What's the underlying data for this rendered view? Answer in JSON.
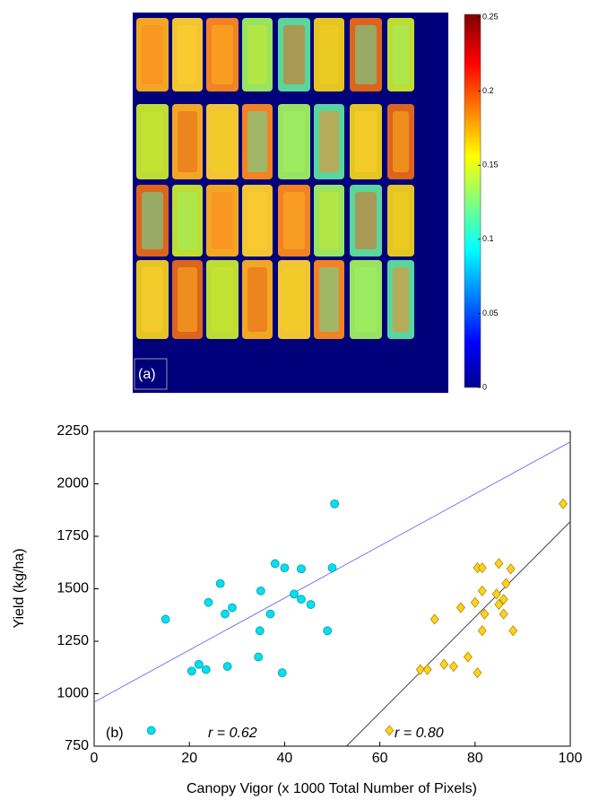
{
  "chart_data": [
    {
      "type": "image",
      "annotation": "(a)",
      "colorbar": {
        "ylim": [
          0,
          0.25
        ],
        "yticks": [
          0,
          0.05,
          0.1,
          0.15,
          0.2,
          0.25
        ]
      }
    },
    {
      "type": "scatter",
      "xlabel": "Canopy Vigor (x 1000 Total Number of Pixels)",
      "ylabel": "Yield (kg/ha)",
      "xlim": [
        0,
        100
      ],
      "xticks": [
        0,
        20,
        40,
        60,
        80,
        100
      ],
      "ylim": [
        750,
        2250
      ],
      "yticks": [
        750,
        1000,
        1250,
        1500,
        1750,
        2000,
        2250
      ],
      "series": [
        {
          "color": "#00e0f0",
          "marker": "circle",
          "x": [
            12,
            15,
            20.5,
            22,
            23.5,
            24,
            26.5,
            27.5,
            28,
            29,
            34.5,
            34.8,
            35,
            37,
            38,
            39.5,
            40,
            42,
            43.5,
            43.5,
            45.5,
            49,
            50,
            50.5
          ],
          "values": [
            825,
            1355,
            1108,
            1140,
            1115,
            1435,
            1525,
            1380,
            1130,
            1410,
            1175,
            1300,
            1490,
            1380,
            1620,
            1100,
            1600,
            1475,
            1450,
            1595,
            1425,
            1300,
            1600,
            1905
          ]
        },
        {
          "color": "#ffd21f",
          "marker": "diamond",
          "x": [
            62,
            68.5,
            70,
            71.5,
            73.5,
            75.5,
            77,
            78.5,
            80,
            80.5,
            80.5,
            81.5,
            81.5,
            81.5,
            82,
            84.5,
            85,
            85,
            86,
            86,
            86.5,
            87.5,
            88,
            98.5
          ],
          "values": [
            825,
            1115,
            1115,
            1355,
            1140,
            1130,
            1410,
            1175,
            1435,
            1100,
            1600,
            1600,
            1490,
            1300,
            1380,
            1475,
            1620,
            1425,
            1450,
            1380,
            1525,
            1595,
            1300,
            1905
          ]
        }
      ],
      "trend_lines": [
        {
          "color": "#6a6aff",
          "x": [
            0,
            100
          ],
          "values": [
            960,
            2200
          ]
        },
        {
          "color": "#333333",
          "x": [
            53,
            100
          ],
          "values": [
            750,
            1820
          ]
        }
      ],
      "annotations": [
        "(b)",
        "r = 0.62",
        "r = 0.80"
      ]
    }
  ]
}
